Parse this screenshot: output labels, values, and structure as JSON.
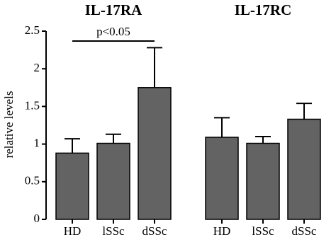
{
  "chart_data": {
    "type": "bar",
    "ylabel": "relative levels",
    "groups": [
      "IL-17RA",
      "IL-17RC"
    ],
    "categories": [
      "HD",
      "lSSc",
      "dSSc",
      "HD",
      "lSSc",
      "dSSc"
    ],
    "values": [
      0.88,
      1.01,
      1.75,
      1.09,
      1.01,
      1.33
    ],
    "errors": [
      0.19,
      0.12,
      0.53,
      0.26,
      0.09,
      0.21
    ],
    "color": "#636363",
    "ylim": [
      0,
      2.5
    ],
    "yticks": [
      0,
      0.5,
      1,
      1.5,
      2,
      2.5
    ],
    "annotation": "p<0.05",
    "grid": false
  }
}
